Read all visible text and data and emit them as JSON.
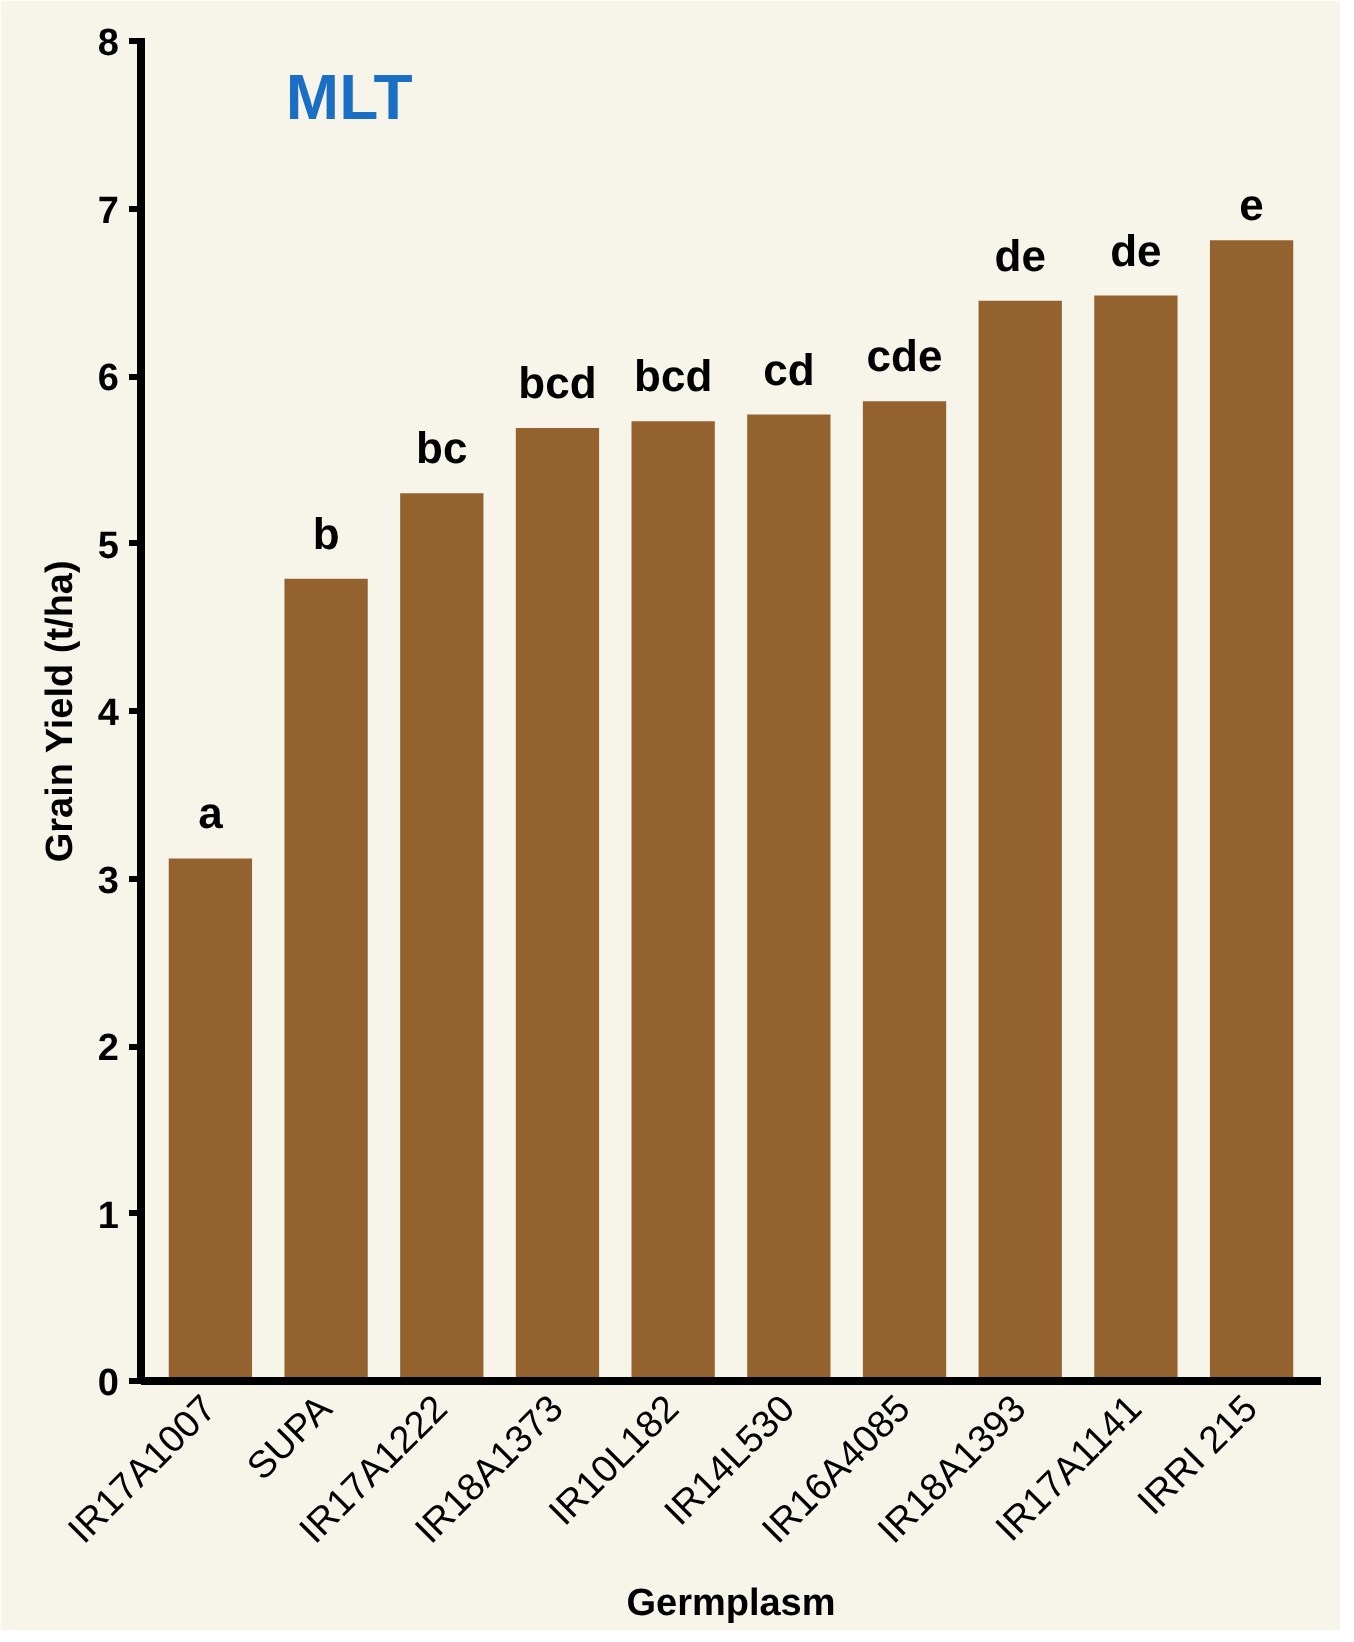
{
  "chart_data": {
    "type": "bar",
    "title": "MLT",
    "xlabel": "Germplasm",
    "ylabel": "Grain Yield (t/ha)",
    "categories": [
      "IR17A1007",
      "SUPA",
      "IR17A1222",
      "IR18A1373",
      "IR10L182",
      "IR14L530",
      "IR16A4085",
      "IR18A1393",
      "IR17A1141",
      "IRRI 215"
    ],
    "values": [
      3.12,
      4.79,
      5.3,
      5.69,
      5.73,
      5.77,
      5.85,
      6.45,
      6.48,
      6.81
    ],
    "color": "#94622f",
    "ylim": [
      0,
      8
    ],
    "yticks": [
      0,
      1,
      2,
      3,
      4,
      5,
      6,
      7,
      8
    ],
    "grid": false,
    "annotations": [
      {
        "text": "a",
        "x": "IR17A1007",
        "y": 3.12
      },
      {
        "text": "b",
        "x": "SUPA",
        "y": 4.79
      },
      {
        "text": "bc",
        "x": "IR17A1222",
        "y": 5.3
      },
      {
        "text": "bcd",
        "x": "IR18A1373",
        "y": 5.69
      },
      {
        "text": "bcd",
        "x": "IR10L182",
        "y": 5.73
      },
      {
        "text": "cd",
        "x": "IR14L530",
        "y": 5.77
      },
      {
        "text": "cde",
        "x": "IR16A4085",
        "y": 5.85
      },
      {
        "text": "de",
        "x": "IR18A1393",
        "y": 6.45
      },
      {
        "text": "de",
        "x": "IR17A1141",
        "y": 6.48
      },
      {
        "text": "e",
        "x": "IRRI 215",
        "y": 6.81
      }
    ]
  }
}
